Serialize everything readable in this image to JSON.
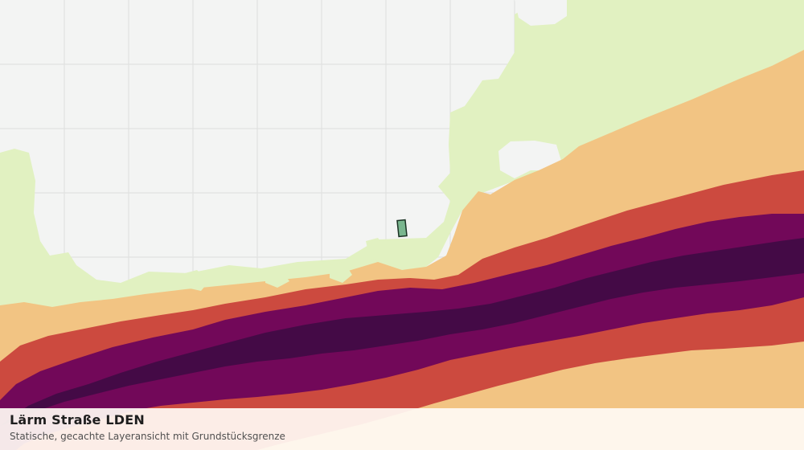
{
  "caption": {
    "title": "Lärm Straße LDEN",
    "subtitle": "Statische, gecachte Layeransicht mit Grundstücksgrenze"
  },
  "colors": {
    "background": "#f3f4f3",
    "grid": "#dedede",
    "noise_band_lowest": "#e1f1c1",
    "noise_band_low": "#f2c483",
    "noise_band_mid": "#cc4a3f",
    "noise_band_high": "#720859",
    "noise_band_highest": "#440a46",
    "parcel_fill": "#79b68e",
    "parcel_border": "#1b3324"
  },
  "layers": [
    "noise-band-lowest",
    "noise-band-low",
    "noise-band-mid",
    "noise-band-high",
    "noise-band-highest",
    "parcel-boundary"
  ]
}
